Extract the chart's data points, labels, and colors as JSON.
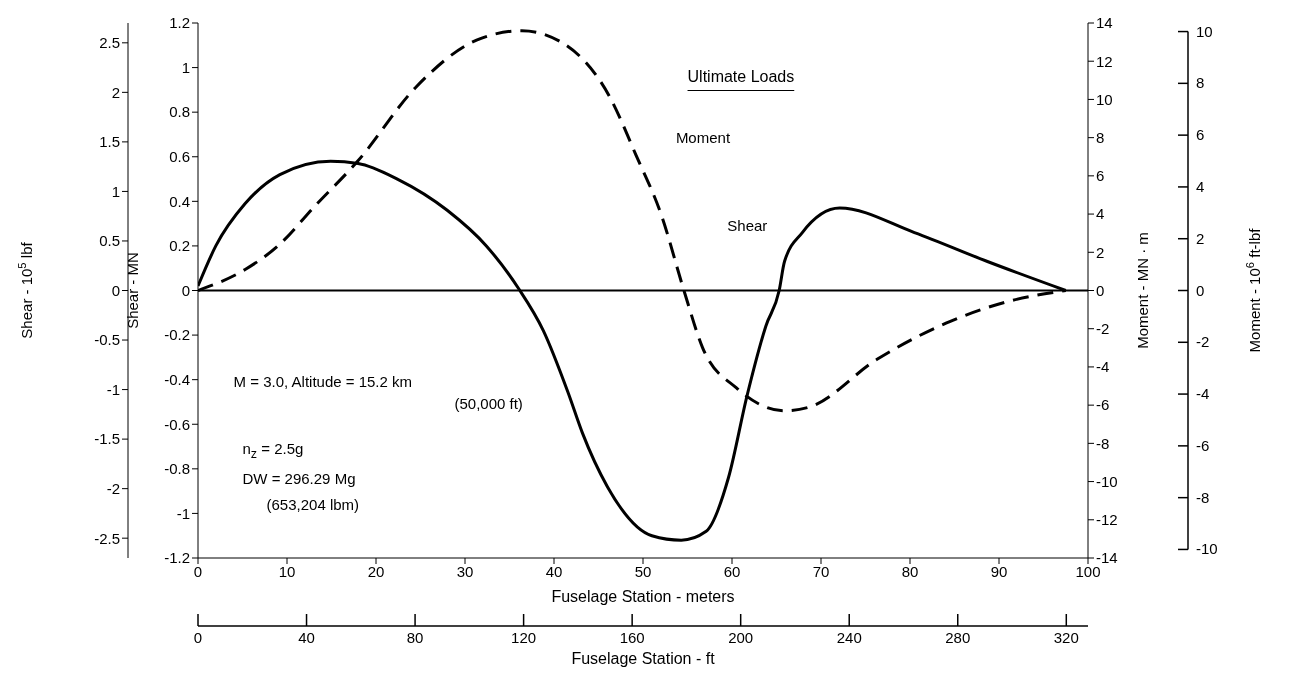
{
  "chart_data": {
    "type": "line",
    "title": "Ultimate Loads",
    "xlabel": "Fuselage Station - meters",
    "ylabel": "Shear - MN",
    "y2label": "Moment - MN · m",
    "y3label": "Shear - 10$^{5}$ lbf",
    "x2label": "Fuselage Station - ft",
    "xlim": [
      0,
      100
    ],
    "xticks": [
      0,
      10,
      20,
      30,
      40,
      50,
      60,
      70,
      80,
      90,
      100
    ],
    "x2lim": [
      0,
      328
    ],
    "x2ticks": [
      0,
      40,
      80,
      120,
      160,
      200,
      240,
      280,
      320
    ],
    "ylim": [
      -1.2,
      1.2
    ],
    "yticks": [
      -1.2,
      -1.0,
      -0.8,
      -0.6,
      -0.4,
      -0.2,
      0,
      0.2,
      0.4,
      0.6,
      0.8,
      1.0,
      1.2
    ],
    "y2lim": [
      -14,
      14
    ],
    "y2ticks": [
      -14,
      -12,
      -10,
      -8,
      -6,
      -4,
      -2,
      0,
      2,
      4,
      6,
      8,
      10,
      12,
      14
    ],
    "y3lim": [
      -2.7,
      2.7
    ],
    "y3ticks": [
      -2.5,
      -2.0,
      -1.5,
      -1.0,
      -0.5,
      0,
      0.5,
      1.0,
      1.5,
      2.0,
      2.5
    ],
    "series": [
      {
        "name": "Shear",
        "color": "#000000",
        "line_style": "solid",
        "x": [
          0,
          2,
          5.3,
          9.2,
          14.9,
          18,
          22.4,
          28,
          32.4,
          36,
          38.8,
          41.6,
          43.2,
          46,
          51,
          54.3,
          57.1,
          59.6,
          61.7,
          63.8,
          65.3,
          65.9,
          67.9,
          72.1,
          80.5,
          88.7,
          97.5
        ],
        "values": [
          0.02,
          0.2,
          0.39,
          0.52,
          0.58,
          0.57,
          0.5,
          0.36,
          0.2,
          0.01,
          -0.18,
          -0.46,
          -0.64,
          -0.88,
          -1.1,
          -1.12,
          -1.08,
          -0.84,
          -0.47,
          -0.16,
          0,
          0.13,
          0.26,
          0.37,
          0.26,
          0.13,
          0
        ]
      },
      {
        "name": "Moment",
        "color": "#000000",
        "line_style": "dashed",
        "axis": "y2",
        "x": [
          0,
          5.3,
          8.9,
          13.3,
          18,
          24.4,
          31.3,
          36.4,
          40.8,
          46.3,
          49.2,
          52.1,
          54.6,
          56.7,
          60.5,
          65.9,
          68.7,
          76.3,
          84.6,
          90.8,
          97.5
        ],
        "values": [
          0,
          1.1,
          2.3,
          4.5,
          6.8,
          10.6,
          13.1,
          13.6,
          13.0,
          10.1,
          7.1,
          3.9,
          0,
          -3.0,
          -5.1,
          -6.3,
          -6.1,
          -3.6,
          -1.6,
          -0.6,
          0
        ]
      }
    ],
    "ref_lines": [
      {
        "axis": "y",
        "value": 0,
        "color": "#000000"
      }
    ],
    "annotations": [
      "M = 3.0, Altitude = 15.2 km",
      "(50,000 ft)",
      "n$_{z}$ = 2.5g",
      "DW = 296.29 Mg",
      "(653,204 lbm)",
      "10",
      "8",
      "6",
      "4",
      "2",
      "0",
      "-2",
      "-4",
      "-6",
      "-8",
      "-10",
      "Moment - 10$^{6}$ ft-lbf"
    ],
    "grid": false,
    "legend": false,
    "marker": "none"
  }
}
